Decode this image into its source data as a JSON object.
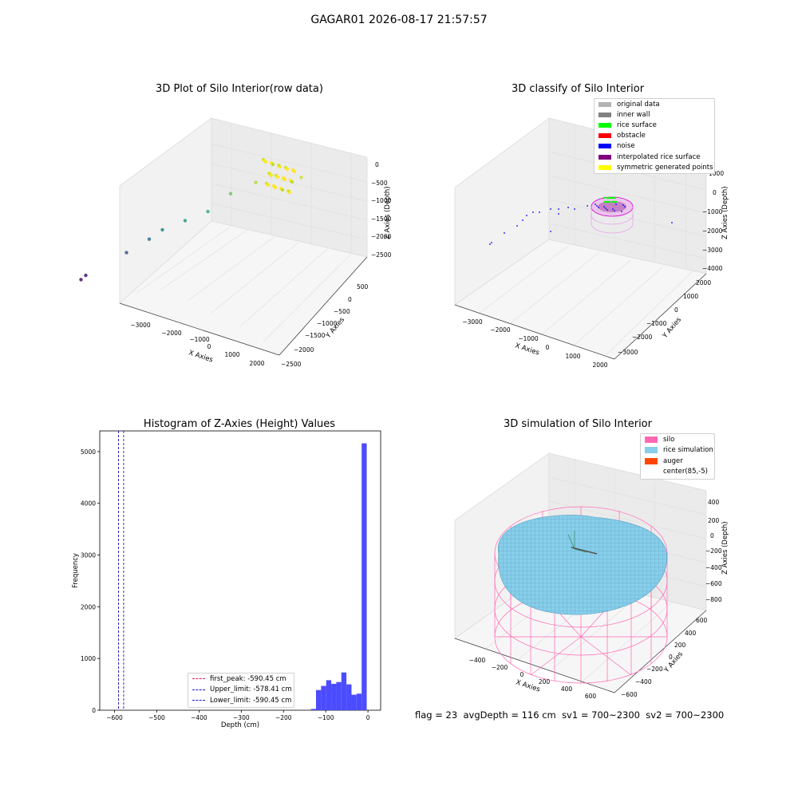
{
  "figure": {
    "title": "GAGAR01 2026-08-17 21:57:57",
    "status": {
      "flag": "flag = 23",
      "avg_depth": "avgDepth = 116 cm",
      "sv1": "sv1 = 700~2300",
      "sv2": "sv2 = 700~2300"
    },
    "colors": {
      "hist_bar": "#4b4bff",
      "peak_line": "#d81b60",
      "limit_line": "#1a1acc",
      "silo": "#ff69b4",
      "rice": "#87ceeb",
      "auger": "#ff4500"
    }
  },
  "chart_data": [
    {
      "type": "scatter",
      "title": "3D Plot of Silo Interior(row data)",
      "xlabel": "X Axies",
      "ylabel": "Y Axies",
      "zlabel": "Z Axies (Depth)",
      "x_ticks": [
        "−3000",
        "−2000",
        "−1000",
        "0",
        "1000",
        "2000"
      ],
      "y_ticks": [
        "500",
        "0",
        "−500",
        "−1000",
        "−1500",
        "−2000",
        "−2500"
      ],
      "z_ticks": [
        "0",
        "−500",
        "−1000",
        "−1500",
        "−2000",
        "−2500"
      ],
      "colormap": "viridis",
      "series": [
        {
          "values": [
            [
              -3300,
              400,
              -2400
            ],
            [
              -3200,
              350,
              -2300
            ],
            [
              -2300,
              0,
              -1800
            ],
            [
              -1800,
              -200,
              -1500
            ],
            [
              -1500,
              -300,
              -1300
            ],
            [
              -1000,
              -500,
              -1100
            ],
            [
              -500,
              -700,
              -900
            ],
            [
              0,
              -900,
              -500
            ],
            [
              500,
              -1200,
              -200
            ],
            [
              800,
              -1400,
              0
            ],
            [
              1500,
              -1600,
              -100
            ]
          ]
        }
      ]
    },
    {
      "type": "scatter",
      "title": "3D classify of Silo Interior",
      "xlabel": "X Axies",
      "ylabel": "Y Axies",
      "zlabel": "Z Axies (Depth)",
      "x_ticks": [
        "−3000",
        "−2000",
        "−1000",
        "0",
        "1000",
        "2000"
      ],
      "y_ticks": [
        "2000",
        "1000",
        "0",
        "−1000",
        "−2000",
        "−3000"
      ],
      "z_ticks": [
        "1000",
        "0",
        "−1000",
        "−2000",
        "−3000",
        "−4000"
      ],
      "legend": [
        {
          "label": "original data",
          "color": "#b3b3b3"
        },
        {
          "label": "inner wall",
          "color": "#808080"
        },
        {
          "label": "rice surface",
          "color": "#00ff00"
        },
        {
          "label": "obstacle",
          "color": "#ff0000"
        },
        {
          "label": "noise",
          "color": "#0000ff"
        },
        {
          "label": "interpolated rice surface",
          "color": "#800080"
        },
        {
          "label": "symmetric generated points",
          "color": "#ffff00"
        }
      ]
    },
    {
      "type": "bar",
      "title": "Histogram of Z-Axies (Height) Values",
      "xlabel": "Depth (cm)",
      "ylabel": "Frequency",
      "xlim": [
        -635,
        30
      ],
      "ylim": [
        0,
        5400
      ],
      "x_ticks": [
        -600,
        -500,
        -400,
        -300,
        -200,
        -100,
        0
      ],
      "x_tick_labels": [
        "−600",
        "−500",
        "−400",
        "−300",
        "−200",
        "−100",
        "0"
      ],
      "y_ticks": [
        0,
        1000,
        2000,
        3000,
        4000,
        5000
      ],
      "bin_edges": [
        -135,
        -123,
        -111,
        -99,
        -87,
        -75,
        -63,
        -51,
        -39,
        -27,
        -15,
        -3
      ],
      "values": [
        25,
        390,
        470,
        580,
        510,
        545,
        730,
        500,
        300,
        320,
        5160
      ],
      "vlines": [
        {
          "name": "first_peak",
          "x": -590.45,
          "label": "first_peak: -590.45 cm",
          "style": "peak"
        },
        {
          "name": "upper",
          "x": -578.41,
          "label": "Upper_limit: -578.41 cm",
          "style": "limit"
        },
        {
          "name": "lower",
          "x": -590.45,
          "label": "Lower_limit: -590.45 cm",
          "style": "limit"
        }
      ],
      "legend_position": "lower center"
    },
    {
      "type": "scatter",
      "title": "3D simulation of Silo Interior",
      "xlabel": "X Axies",
      "ylabel": "Y Axies",
      "zlabel": "Z Axies (Depth)",
      "x_ticks": [
        "−400",
        "−200",
        "0",
        "200",
        "400",
        "600"
      ],
      "y_ticks": [
        "600",
        "400",
        "200",
        "0",
        "−200",
        "−400",
        "−600"
      ],
      "z_ticks": [
        "400",
        "200",
        "0",
        "−200",
        "−400",
        "−600",
        "−800"
      ],
      "legend": [
        {
          "label": "silo",
          "color": "#ff69b4"
        },
        {
          "label": "rice simulation",
          "color": "#87ceeb"
        },
        {
          "label": "auger",
          "color": "#ff4500"
        },
        {
          "label": "center(85,-5)",
          "color": ""
        }
      ]
    }
  ]
}
